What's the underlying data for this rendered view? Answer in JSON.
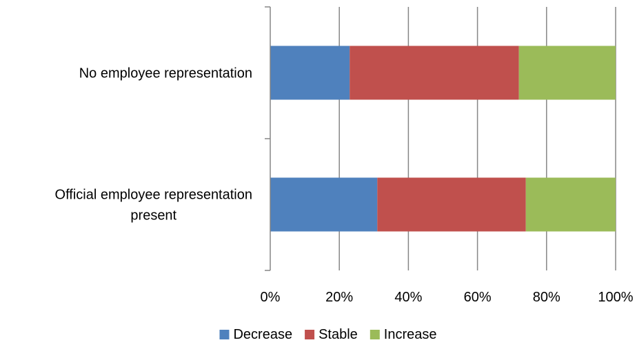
{
  "chart_data": {
    "type": "bar",
    "orientation": "horizontal",
    "stacked": true,
    "percent_stacked": true,
    "title": "",
    "xlabel": "",
    "ylabel": "",
    "categories": [
      [
        "Official employee representation",
        "present"
      ],
      [
        "No employee representation"
      ]
    ],
    "series": [
      {
        "name": "Decrease",
        "color": "#4f81bd",
        "values": [
          31,
          23
        ]
      },
      {
        "name": "Stable",
        "color": "#c0504d",
        "values": [
          43,
          49
        ]
      },
      {
        "name": "Increase",
        "color": "#9bbb59",
        "values": [
          26,
          28
        ]
      }
    ],
    "xlim": [
      0,
      100
    ],
    "x_ticks": [
      0,
      20,
      40,
      60,
      80,
      100
    ],
    "x_tick_labels": [
      "0%",
      "20%",
      "40%",
      "60%",
      "80%",
      "100%"
    ],
    "grid": true,
    "gridline_color": "#868686",
    "legend_position": "bottom"
  }
}
